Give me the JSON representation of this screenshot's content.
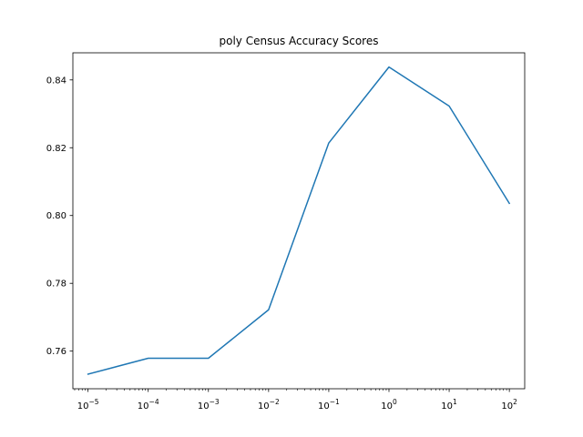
{
  "chart_data": {
    "type": "line",
    "title": "poly Census Accuracy Scores",
    "xlabel": "",
    "ylabel": "",
    "x_scale": "log",
    "x": [
      1e-05,
      0.0001,
      0.001,
      0.01,
      0.1,
      1,
      10,
      100
    ],
    "series": [
      {
        "values": [
          0.7532,
          0.7579,
          0.7579,
          0.7722,
          0.8214,
          0.8438,
          0.8323,
          0.8036
        ],
        "color": "#1f77b4"
      }
    ],
    "xlim": [
      5.6e-06,
      180
    ],
    "ylim": [
      0.7489,
      0.848
    ],
    "x_ticks": [
      {
        "value": 1e-05,
        "exponent": "−5"
      },
      {
        "value": 0.0001,
        "exponent": "−4"
      },
      {
        "value": 0.001,
        "exponent": "−3"
      },
      {
        "value": 0.01,
        "exponent": "−2"
      },
      {
        "value": 0.1,
        "exponent": "−1"
      },
      {
        "value": 1,
        "exponent": "0"
      },
      {
        "value": 10,
        "exponent": "1"
      },
      {
        "value": 100,
        "exponent": "2"
      }
    ],
    "x_tick_base": "10",
    "y_ticks": [
      0.76,
      0.78,
      0.8,
      0.82,
      0.84
    ],
    "y_tick_labels": [
      "0.76",
      "0.78",
      "0.80",
      "0.82",
      "0.84"
    ],
    "grid": false,
    "legend": "none"
  }
}
